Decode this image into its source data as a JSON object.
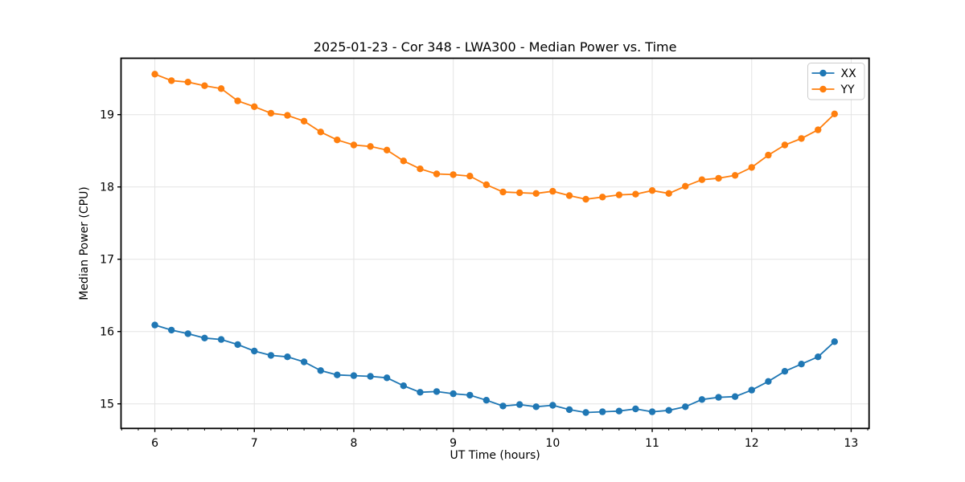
{
  "chart_data": {
    "type": "line",
    "title": "2025-01-23 - Cor 348 - LWA300 - Median Power vs. Time",
    "xlabel": "UT Time (hours)",
    "ylabel": "Median Power (CPU)",
    "xlim": [
      5.66,
      13.18
    ],
    "ylim": [
      14.66,
      19.78
    ],
    "xticks": [
      6,
      7,
      8,
      9,
      10,
      11,
      12,
      13
    ],
    "yticks": [
      15,
      16,
      17,
      18,
      19
    ],
    "x_minor_tick_interval_hours": 0.16667,
    "grid": true,
    "grid_color": "#e4e4e4",
    "legend_position": "upper right",
    "marker": "o",
    "x": [
      6.0,
      6.167,
      6.333,
      6.5,
      6.667,
      6.833,
      7.0,
      7.167,
      7.333,
      7.5,
      7.667,
      7.833,
      8.0,
      8.167,
      8.333,
      8.5,
      8.667,
      8.833,
      9.0,
      9.167,
      9.333,
      9.5,
      9.667,
      9.833,
      10.0,
      10.167,
      10.333,
      10.5,
      10.667,
      10.833,
      11.0,
      11.167,
      11.333,
      11.5,
      11.667,
      11.833,
      12.0,
      12.167,
      12.333,
      12.5,
      12.667,
      12.833
    ],
    "series": [
      {
        "name": "XX",
        "color": "#1f77b4",
        "values": [
          16.09,
          16.02,
          15.97,
          15.91,
          15.89,
          15.82,
          15.73,
          15.67,
          15.65,
          15.58,
          15.46,
          15.4,
          15.39,
          15.38,
          15.36,
          15.25,
          15.16,
          15.17,
          15.14,
          15.12,
          15.05,
          14.97,
          14.99,
          14.96,
          14.98,
          14.92,
          14.88,
          14.89,
          14.9,
          14.93,
          14.89,
          14.91,
          14.96,
          15.06,
          15.09,
          15.1,
          15.19,
          15.31,
          15.45,
          15.55,
          15.65,
          15.86
        ]
      },
      {
        "name": "YY",
        "color": "#ff7f0e",
        "values": [
          19.56,
          19.47,
          19.45,
          19.4,
          19.36,
          19.19,
          19.11,
          19.02,
          18.99,
          18.91,
          18.76,
          18.65,
          18.58,
          18.56,
          18.51,
          18.36,
          18.25,
          18.18,
          18.17,
          18.15,
          18.03,
          17.93,
          17.92,
          17.91,
          17.94,
          17.88,
          17.83,
          17.86,
          17.89,
          17.9,
          17.95,
          17.91,
          18.01,
          18.1,
          18.12,
          18.16,
          18.27,
          18.44,
          18.58,
          18.67,
          18.79,
          19.01
        ]
      }
    ]
  }
}
